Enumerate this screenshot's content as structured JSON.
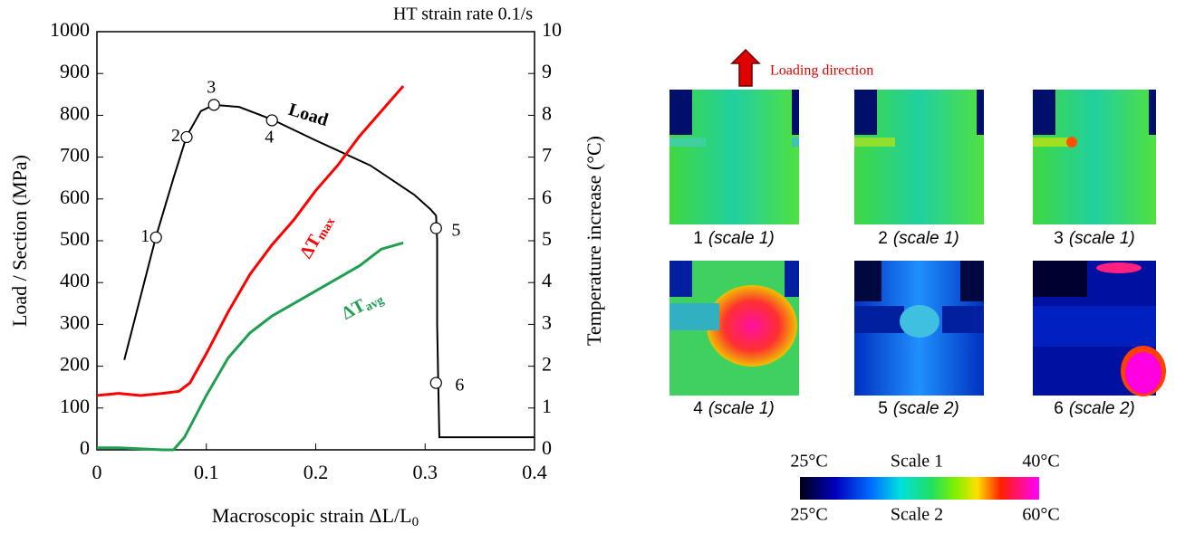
{
  "chart_data": {
    "type": "line",
    "title": "HT strain rate 0.1/s",
    "x_label": "Macroscopic strain ΔL/L",
    "x_label_sub": "0",
    "y_label": "Load / Section (MPa)",
    "y2_label": "Temperature increase (°C)",
    "xlim": [
      0,
      0.4
    ],
    "xticks": [
      0,
      0.1,
      0.2,
      0.3,
      0.4
    ],
    "ylim": [
      0,
      1000
    ],
    "yticks": [
      0,
      100,
      200,
      300,
      400,
      500,
      600,
      700,
      800,
      900,
      1000
    ],
    "y2lim": [
      0,
      10
    ],
    "y2ticks": [
      0,
      1,
      2,
      3,
      4,
      5,
      6,
      7,
      8,
      9,
      10
    ],
    "grid": false,
    "series": [
      {
        "name": "Load",
        "color": "#000000",
        "x": [
          0.025,
          0.054,
          0.07,
          0.082,
          0.095,
          0.107,
          0.13,
          0.16,
          0.2,
          0.25,
          0.29,
          0.305,
          0.31,
          0.311,
          0.311,
          0.312,
          0.313,
          0.4
        ],
        "values": [
          215,
          510,
          650,
          750,
          810,
          825,
          820,
          790,
          740,
          680,
          610,
          575,
          560,
          500,
          300,
          160,
          30,
          30
        ]
      },
      {
        "name": "ΔT",
        "subscript": "max",
        "color": "#ff0000",
        "axis": "y2",
        "x": [
          0,
          0.02,
          0.04,
          0.06,
          0.075,
          0.085,
          0.1,
          0.12,
          0.14,
          0.16,
          0.18,
          0.2,
          0.22,
          0.24,
          0.26,
          0.28
        ],
        "values": [
          1.3,
          1.35,
          1.3,
          1.35,
          1.4,
          1.6,
          2.3,
          3.3,
          4.2,
          4.9,
          5.5,
          6.2,
          6.8,
          7.5,
          8.1,
          8.7
        ]
      },
      {
        "name": "ΔT",
        "subscript": "avg",
        "color": "#1fa050",
        "axis": "y2",
        "x": [
          0,
          0.02,
          0.06,
          0.07,
          0.08,
          0.1,
          0.12,
          0.14,
          0.16,
          0.18,
          0.2,
          0.22,
          0.24,
          0.26,
          0.28
        ],
        "values": [
          0.05,
          0.05,
          0,
          0,
          0.3,
          1.3,
          2.2,
          2.8,
          3.2,
          3.5,
          3.8,
          4.1,
          4.4,
          4.8,
          4.95
        ]
      }
    ],
    "markers": [
      {
        "label": "1",
        "x": 0.054,
        "y": 508
      },
      {
        "label": "2",
        "x": 0.082,
        "y": 748
      },
      {
        "label": "3",
        "x": 0.107,
        "y": 825
      },
      {
        "label": "4",
        "x": 0.16,
        "y": 788
      },
      {
        "label": "5",
        "x": 0.31,
        "y": 530
      },
      {
        "label": "6",
        "x": 0.31,
        "y": 160
      }
    ]
  },
  "thermal": {
    "loading_label": "Loading direction",
    "panels": [
      {
        "number": "1",
        "scale": "(scale 1)"
      },
      {
        "number": "2",
        "scale": "(scale 1)"
      },
      {
        "number": "3",
        "scale": "(scale 1)"
      },
      {
        "number": "4",
        "scale": "(scale 1)"
      },
      {
        "number": "5",
        "scale": "(scale 2)"
      },
      {
        "number": "6",
        "scale": "(scale 2)"
      }
    ],
    "colorbar": {
      "scale1": {
        "min": "25°C",
        "name": "Scale 1",
        "max": "40°C"
      },
      "scale2": {
        "min": "25°C",
        "name": "Scale 2",
        "max": "60°C"
      }
    }
  }
}
